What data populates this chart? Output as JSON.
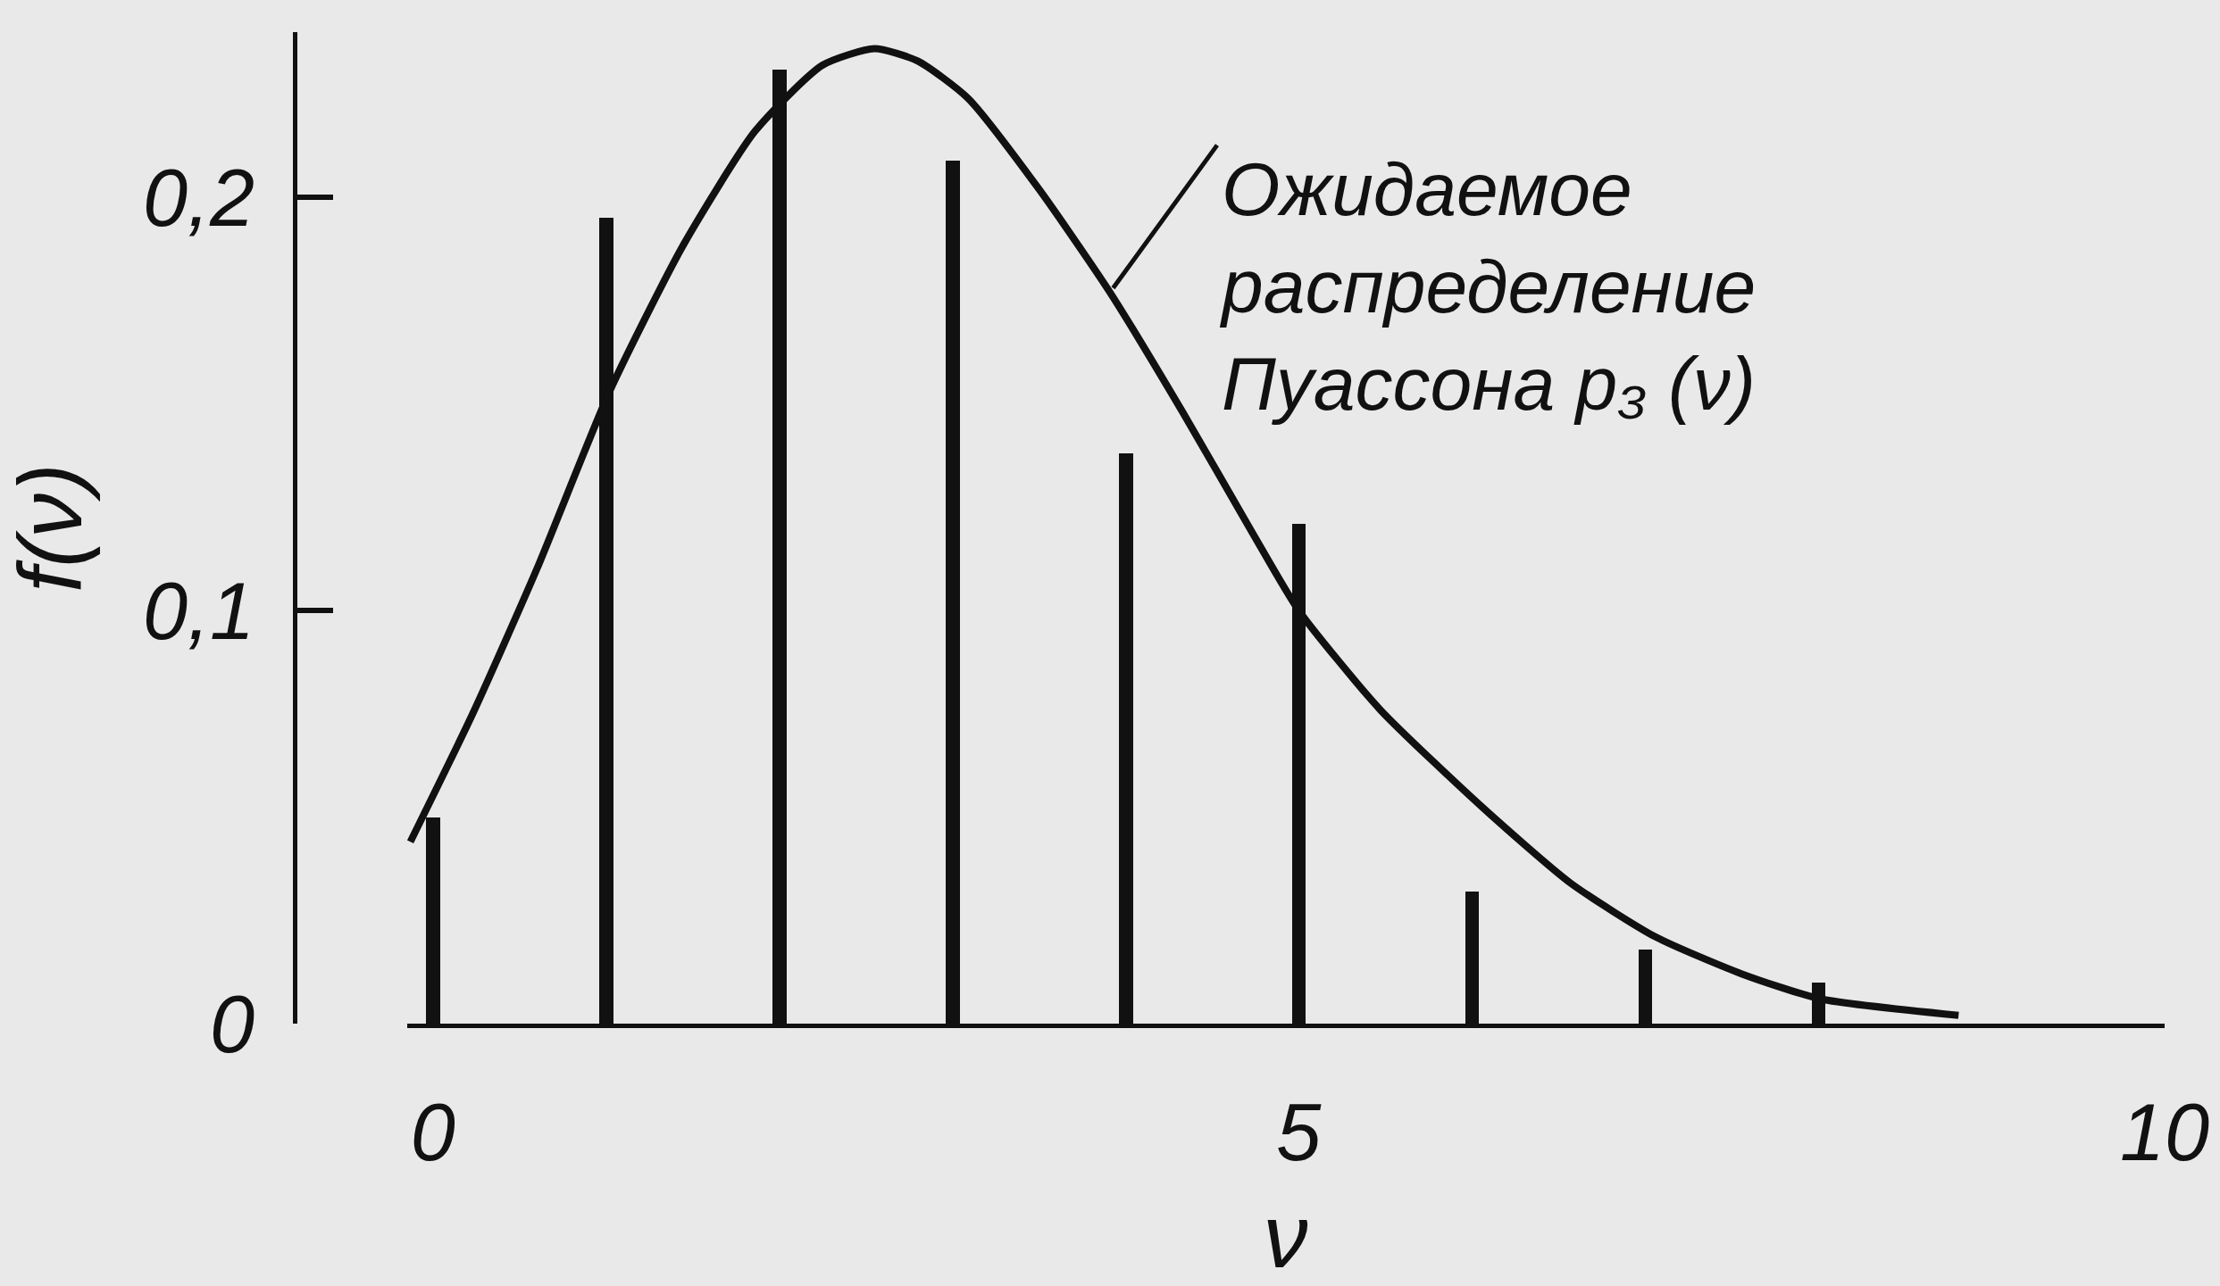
{
  "chart_data": {
    "type": "bar",
    "xlabel": "ν",
    "ylabel": "f(ν)",
    "xlim": [
      -0.15,
      10
    ],
    "xticks": [
      0,
      5,
      10
    ],
    "ylim": [
      0,
      0.24
    ],
    "yticks": [
      0,
      {
        "value": 0.1,
        "label": "0,1"
      },
      {
        "value": 0.2,
        "label": "0,2"
      }
    ],
    "annotations": [
      {
        "text": "Ожидаемое распределение Пуассона p₃ (ν)",
        "x": 3.91,
        "y": 0.177
      }
    ],
    "series": [
      {
        "color": "#111111",
        "x": [
          0,
          1,
          2,
          3,
          4,
          5,
          6,
          7,
          8
        ],
        "values": [
          0.05,
          0.195,
          0.231,
          0.209,
          0.138,
          0.121,
          0.032,
          0.018,
          0.01
        ]
      },
      {
        "type": "line",
        "color": "#111111",
        "x": [
          -0.13,
          0.23,
          0.6,
          1.02,
          1.44,
          1.86,
          2.25,
          2.55,
          2.8,
          3.09,
          3.5,
          3.91,
          4.33,
          4.73,
          5.0,
          5.47,
          6.07,
          6.57,
          7.06,
          7.56,
          8.01,
          8.81
        ],
        "values": [
          0.044,
          0.075,
          0.11,
          0.153,
          0.188,
          0.216,
          0.232,
          0.236,
          0.233,
          0.224,
          0.202,
          0.177,
          0.148,
          0.119,
          0.1,
          0.076,
          0.052,
          0.034,
          0.021,
          0.012,
          0.006,
          0.002
        ]
      }
    ]
  }
}
